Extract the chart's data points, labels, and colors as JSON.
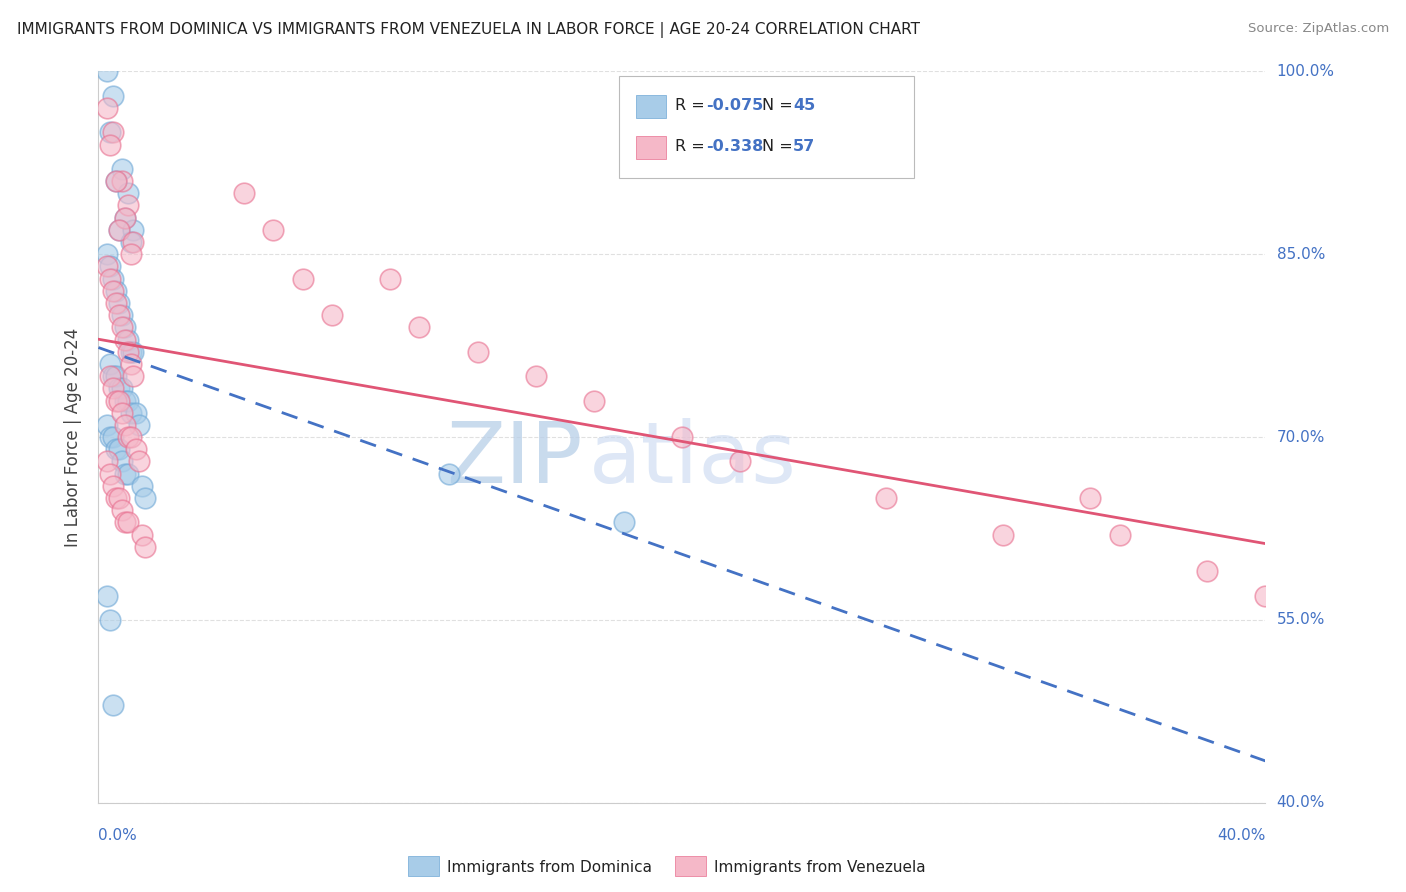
{
  "title": "IMMIGRANTS FROM DOMINICA VS IMMIGRANTS FROM VENEZUELA IN LABOR FORCE | AGE 20-24 CORRELATION CHART",
  "source": "Source: ZipAtlas.com",
  "ylabel": "In Labor Force | Age 20-24",
  "legend_blue_R": "R = ",
  "legend_blue_Rval": "-0.075",
  "legend_blue_N": "N = ",
  "legend_blue_Nval": "45",
  "legend_pink_R": "R = ",
  "legend_pink_Rval": "-0.338",
  "legend_pink_N": "N = ",
  "legend_pink_Nval": "57",
  "legend_label_blue": "Immigrants from Dominica",
  "legend_label_pink": "Immigrants from Venezuela",
  "watermark_ZIP": "ZIP",
  "watermark_atlas": "atlas",
  "blue_color": "#a8cce8",
  "blue_edge_color": "#6fa8d6",
  "pink_color": "#f5b8c8",
  "pink_edge_color": "#e87090",
  "blue_line_color": "#4472c4",
  "pink_line_color": "#e05575",
  "xmin": 0.0,
  "xmax": 0.4,
  "ymin": 0.4,
  "ymax": 1.0,
  "blue_scatter_x": [
    0.003,
    0.005,
    0.004,
    0.008,
    0.006,
    0.01,
    0.009,
    0.007,
    0.012,
    0.011,
    0.003,
    0.004,
    0.005,
    0.006,
    0.007,
    0.008,
    0.009,
    0.01,
    0.011,
    0.012,
    0.004,
    0.005,
    0.006,
    0.007,
    0.008,
    0.009,
    0.01,
    0.011,
    0.013,
    0.014,
    0.003,
    0.004,
    0.005,
    0.006,
    0.007,
    0.008,
    0.009,
    0.01,
    0.015,
    0.016,
    0.003,
    0.004,
    0.005,
    0.12,
    0.18
  ],
  "blue_scatter_y": [
    1.0,
    0.98,
    0.95,
    0.92,
    0.91,
    0.9,
    0.88,
    0.87,
    0.87,
    0.86,
    0.85,
    0.84,
    0.83,
    0.82,
    0.81,
    0.8,
    0.79,
    0.78,
    0.77,
    0.77,
    0.76,
    0.75,
    0.75,
    0.74,
    0.74,
    0.73,
    0.73,
    0.72,
    0.72,
    0.71,
    0.71,
    0.7,
    0.7,
    0.69,
    0.69,
    0.68,
    0.67,
    0.67,
    0.66,
    0.65,
    0.57,
    0.55,
    0.48,
    0.67,
    0.63
  ],
  "pink_scatter_x": [
    0.003,
    0.005,
    0.004,
    0.008,
    0.006,
    0.01,
    0.009,
    0.007,
    0.012,
    0.011,
    0.003,
    0.004,
    0.005,
    0.006,
    0.007,
    0.008,
    0.009,
    0.01,
    0.011,
    0.012,
    0.004,
    0.005,
    0.006,
    0.007,
    0.008,
    0.009,
    0.01,
    0.011,
    0.013,
    0.014,
    0.003,
    0.004,
    0.005,
    0.006,
    0.007,
    0.008,
    0.009,
    0.01,
    0.015,
    0.016,
    0.08,
    0.1,
    0.13,
    0.15,
    0.17,
    0.2,
    0.22,
    0.27,
    0.31,
    0.34,
    0.05,
    0.06,
    0.07,
    0.11,
    0.35,
    0.38,
    0.4
  ],
  "pink_scatter_y": [
    0.97,
    0.95,
    0.94,
    0.91,
    0.91,
    0.89,
    0.88,
    0.87,
    0.86,
    0.85,
    0.84,
    0.83,
    0.82,
    0.81,
    0.8,
    0.79,
    0.78,
    0.77,
    0.76,
    0.75,
    0.75,
    0.74,
    0.73,
    0.73,
    0.72,
    0.71,
    0.7,
    0.7,
    0.69,
    0.68,
    0.68,
    0.67,
    0.66,
    0.65,
    0.65,
    0.64,
    0.63,
    0.63,
    0.62,
    0.61,
    0.8,
    0.83,
    0.77,
    0.75,
    0.73,
    0.7,
    0.68,
    0.65,
    0.62,
    0.65,
    0.9,
    0.87,
    0.83,
    0.79,
    0.62,
    0.59,
    0.57
  ],
  "background_color": "#ffffff",
  "grid_color": "#dddddd",
  "title_color": "#222222",
  "axis_label_color": "#444444",
  "tick_label_color": "#4472c4"
}
